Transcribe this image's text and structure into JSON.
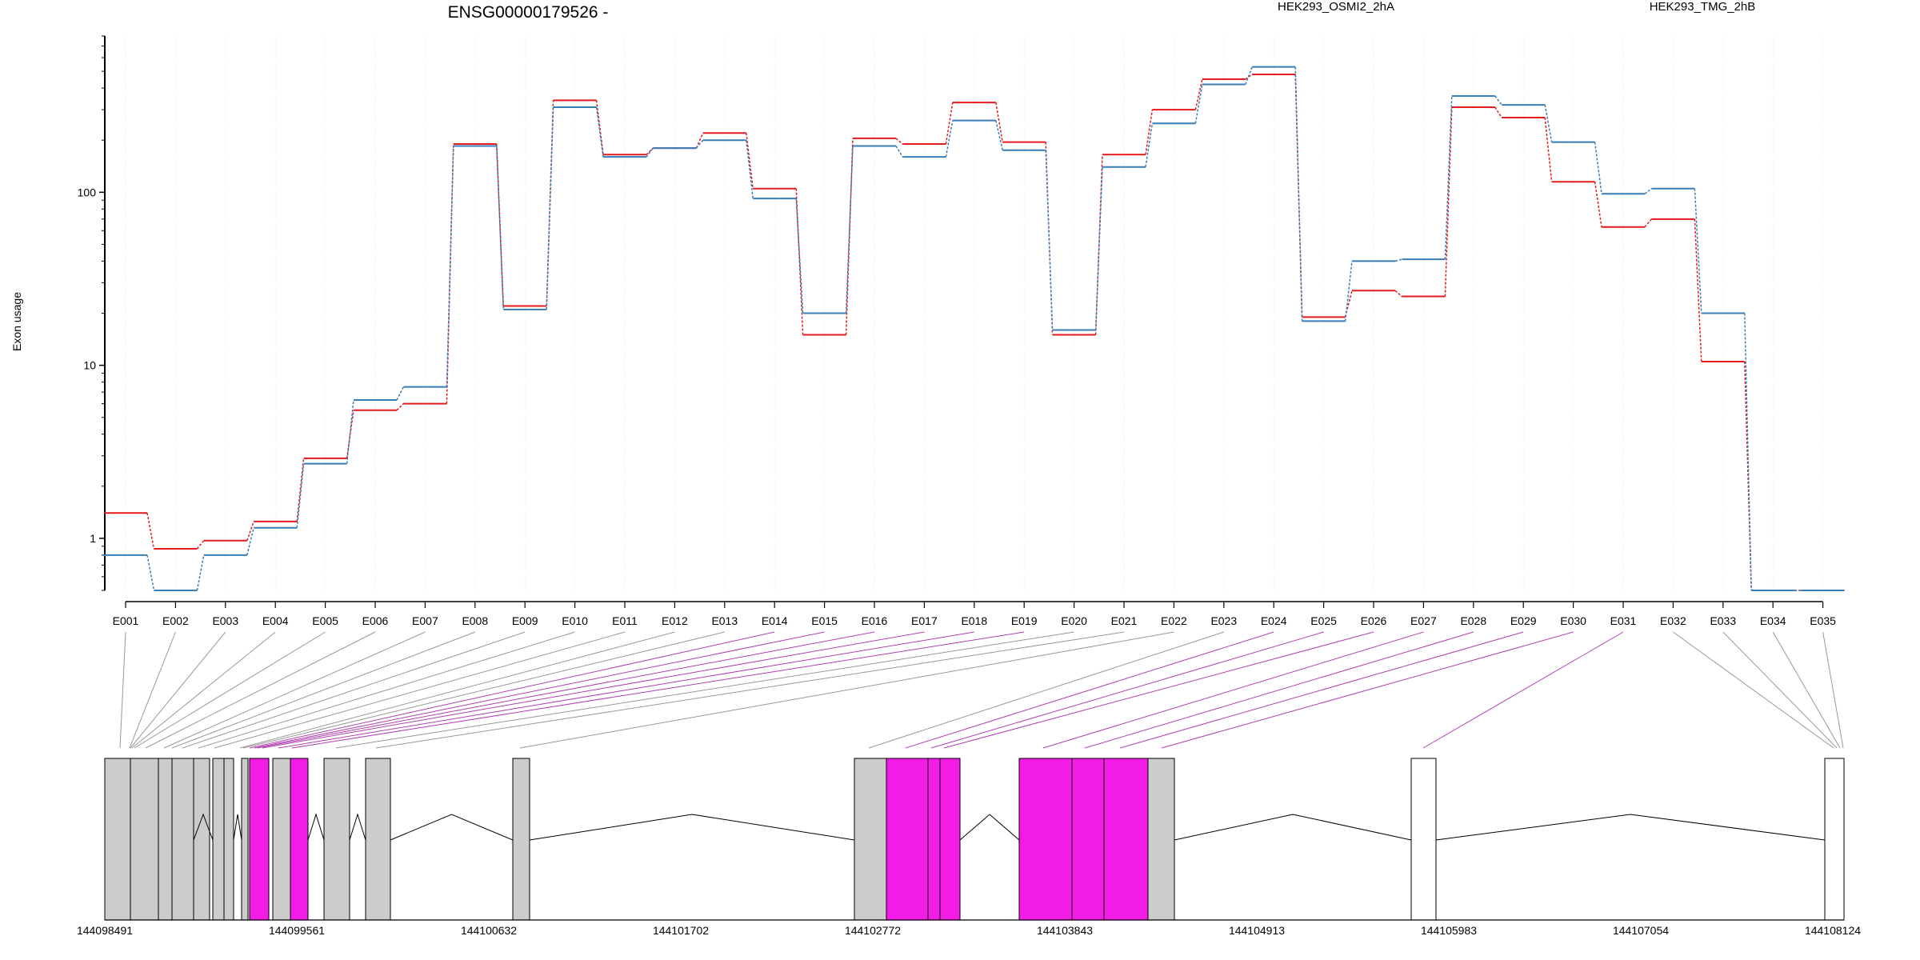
{
  "chart_data": {
    "type": "line",
    "title": "ENSG00000179526 -",
    "ylabel": "Exon usage",
    "xlabel": "",
    "yscale": "log",
    "ylim": [
      0.5,
      800
    ],
    "y_ticks": [
      "1",
      "10",
      "100"
    ],
    "categories": [
      "E001",
      "E002",
      "E003",
      "E004",
      "E005",
      "E006",
      "E007",
      "E008",
      "E009",
      "E010",
      "E011",
      "E012",
      "E013",
      "E014",
      "E015",
      "E016",
      "E017",
      "E018",
      "E019",
      "E020",
      "E021",
      "E022",
      "E023",
      "E024",
      "E025",
      "E026",
      "E027",
      "E028",
      "E029",
      "E030",
      "E031",
      "E032",
      "E033",
      "E034",
      "E035"
    ],
    "series": [
      {
        "name": "HEK293_OSMI2_2hA",
        "color": "#e41a1c",
        "values": [
          1.4,
          0.87,
          0.97,
          1.25,
          2.9,
          5.5,
          6.0,
          190,
          22,
          340,
          165,
          180,
          220,
          105,
          15,
          205,
          190,
          330,
          195,
          15,
          165,
          300,
          450,
          480,
          19,
          27,
          25,
          310,
          270,
          115,
          63,
          70,
          10.5,
          0.5,
          0.5
        ]
      },
      {
        "name": "HEK293_TMG_2hB",
        "color": "#377eb8",
        "values": [
          0.8,
          0.5,
          0.8,
          1.15,
          2.7,
          6.3,
          7.5,
          185,
          21,
          310,
          160,
          180,
          200,
          92,
          20,
          185,
          160,
          260,
          175,
          16,
          140,
          250,
          420,
          530,
          18,
          40,
          41,
          360,
          320,
          195,
          98,
          105,
          20,
          0.5,
          0.5
        ]
      }
    ],
    "legend_position": "top",
    "grid": "vertical dotted",
    "gene_axis_ticks": [
      "144098491",
      "144099561",
      "144100632",
      "144101702",
      "144102772",
      "144103843",
      "144104913",
      "144105983",
      "144107054",
      "144108124"
    ],
    "gene_model_colors": {
      "exon": "#cccccc",
      "highlighted_exon": "#f21ce6",
      "unobserved_exon": "#ffffff",
      "connector": "#999999",
      "highlighted_connector": "#b040b0"
    }
  }
}
